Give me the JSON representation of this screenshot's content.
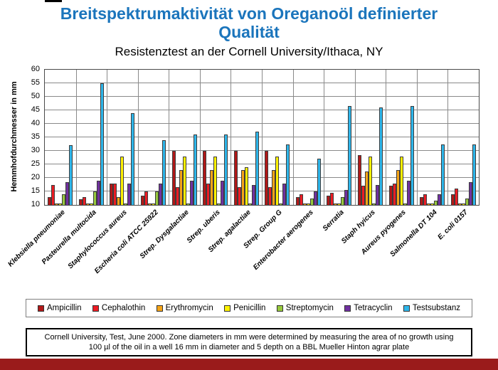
{
  "slide": {
    "title": "Breitspektrumaktivität von Oreganoöl definierter Qualität",
    "subtitle": "Resistenztest an der Cornell University/Ithaca, NY",
    "title_color": "#1B75BC",
    "bottom_bar_color": "#9A1B1B"
  },
  "footer": {
    "line1": "Cornell University, Test, June 2000. Zone diameters in mm were determined by measuring the area of no growth using",
    "line2": "100 µl of the oil in a well 16 mm in diameter and 5 depth on a BBL Mueller Hinton agrar plate"
  },
  "chart_data": {
    "type": "bar",
    "title": "Breitspektrumaktivität von Oreganoöl definierter Qualität",
    "subtitle": "Resistenztest an der Cornell University/Ithaca, NY",
    "ylabel": "Hemmhofdurchmesser in mm",
    "xlabel": "",
    "ylim": [
      10,
      60
    ],
    "yticks": [
      10,
      15,
      20,
      25,
      30,
      35,
      40,
      45,
      50,
      55,
      60
    ],
    "grid": true,
    "legend_position": "bottom",
    "grid_color": "#8a8a8a",
    "bar_outline_color": "#3c3c3c",
    "categories": [
      "Klebsiella pneumoniae",
      "Pasteurella multocida",
      "Staphylococcus aureus",
      "Escheria coli ATCC 25922",
      "Strep. Dysgalactiae",
      "Strep. uberis",
      "Strep. agalactiae",
      "Strep. Group G",
      "Enterobacter aerogenes",
      "Serratia",
      "Staph hyicus",
      "Aureus pyogenes",
      "Salmonella DT 104",
      "E. coli 0157"
    ],
    "series": [
      {
        "name": "Ampicillin",
        "color": "#B11818",
        "values": [
          13,
          12,
          18,
          13.5,
          30,
          30,
          30,
          30,
          13,
          13.5,
          28.5,
          17,
          13,
          14
        ]
      },
      {
        "name": "Cephalothin",
        "color": "#EC1C24",
        "values": [
          17.5,
          13,
          18,
          15,
          16.5,
          18,
          16.5,
          16.5,
          14,
          14.5,
          17,
          18,
          14,
          16
        ]
      },
      {
        "name": "Erythromycin",
        "color": "#F4A418",
        "values": [
          10,
          10,
          13,
          10,
          23,
          23,
          23,
          23,
          10,
          10,
          22.5,
          23,
          10,
          10
        ]
      },
      {
        "name": "Penicillin",
        "color": "#FFF200",
        "values": [
          10,
          10,
          28,
          10,
          28,
          28,
          24,
          28,
          10,
          10,
          28,
          28,
          10,
          10
        ]
      },
      {
        "name": "Streptomycin",
        "color": "#97C93D",
        "values": [
          14,
          15,
          10,
          15,
          10,
          10,
          10,
          10,
          12.5,
          13,
          10,
          10,
          11.5,
          12.5
        ]
      },
      {
        "name": "Tetracyclin",
        "color": "#7030A0",
        "values": [
          18.5,
          19,
          18,
          18,
          19,
          19,
          17.5,
          18,
          15,
          15.5,
          17.5,
          19,
          14,
          18.5
        ]
      },
      {
        "name": "Testsubstanz",
        "color": "#2EB6EA",
        "values": [
          32,
          55,
          44,
          34,
          36,
          36,
          37,
          32.5,
          27,
          46.5,
          46,
          46.5,
          32.5,
          32.5
        ]
      }
    ]
  }
}
